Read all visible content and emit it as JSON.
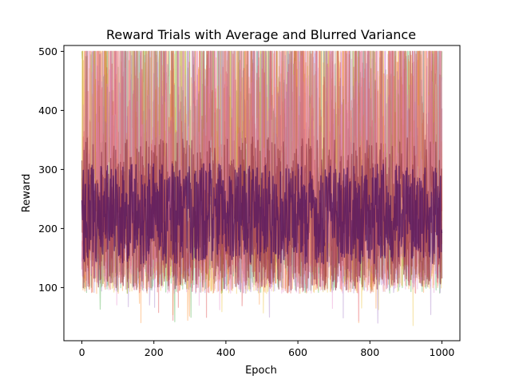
{
  "chart_data": {
    "type": "line",
    "title": "Reward Trials with Average and Blurred Variance",
    "xlabel": "Epoch",
    "ylabel": "Reward",
    "xlim": [
      -50,
      1050
    ],
    "ylim": [
      10,
      510
    ],
    "xticks": [
      0,
      200,
      400,
      600,
      800,
      1000
    ],
    "yticks": [
      100,
      200,
      300,
      400,
      500
    ],
    "grid": false,
    "legend": "none",
    "series_summary": {
      "points_per_series": 1001,
      "x_range": [
        0,
        1000
      ],
      "clip_max": 500,
      "typical_center": 225,
      "typical_low": 90,
      "typical_high": 500,
      "min_observed": 35
    },
    "series": [
      {
        "color": "#2ca02c",
        "opacity": 0.35,
        "kind": "trial"
      },
      {
        "color": "#ff7f0e",
        "opacity": 0.35,
        "kind": "trial"
      },
      {
        "color": "#e8b923",
        "opacity": 0.35,
        "kind": "trial"
      },
      {
        "color": "#9467bd",
        "opacity": 0.35,
        "kind": "trial"
      },
      {
        "color": "#d62728",
        "opacity": 0.35,
        "kind": "trial"
      },
      {
        "color": "#e377c2",
        "opacity": 0.35,
        "kind": "trial"
      },
      {
        "color": "#8c2d3c",
        "opacity": 0.55,
        "kind": "blurred-variance"
      },
      {
        "color": "#4b1060",
        "opacity": 0.7,
        "kind": "average"
      }
    ]
  }
}
